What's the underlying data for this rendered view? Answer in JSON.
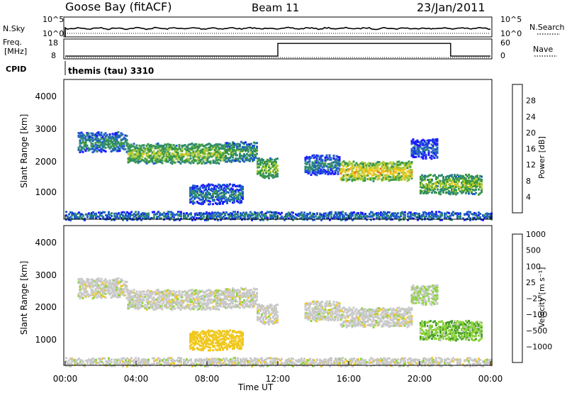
{
  "header": {
    "station": "Goose Bay (fitACF)",
    "beam": "Beam 11",
    "date": "23/Jan/2011"
  },
  "noise_panel": {
    "left_label": "N.Sky",
    "left_ticks": [
      "10^5",
      "10^0"
    ],
    "right_label": "N.Search",
    "right_ticks": [
      "10^5",
      "10^0"
    ]
  },
  "freq_panel": {
    "left_label_line1": "Freq.",
    "left_label_line2": "[MHz]",
    "left_ticks": [
      "18",
      "8"
    ],
    "right_label": "Nave",
    "right_ticks": [
      "60",
      "0"
    ],
    "freq_level": 0.78,
    "nave_low": 0.14,
    "nave_high": 0.78,
    "nave_step_times": [
      12.0,
      21.75
    ]
  },
  "cpid": {
    "label": "CPID",
    "text": "themis (tau) 3310"
  },
  "power_panel": {
    "ylabel": "Slant Range [km]",
    "yticks": [
      "1000",
      "2000",
      "3000",
      "4000"
    ],
    "colorbar_label": "Power [dB]",
    "colorbar_ticks": [
      "4",
      "8",
      "12",
      "16",
      "20",
      "24",
      "28"
    ],
    "colors": [
      "#1a1aff",
      "#1f5fc8",
      "#2f8a70",
      "#3c9a3c",
      "#a8c832",
      "#f0c81e",
      "#f07814",
      "#e82814"
    ]
  },
  "velocity_panel": {
    "ylabel": "Slant Range [km]",
    "yticks": [
      "1000",
      "2000",
      "3000",
      "4000"
    ],
    "colorbar_label": "Velocity [m s⁻¹]",
    "colorbar_ticks": [
      "1000",
      "500",
      "100",
      "25",
      "−25",
      "−100",
      "−500",
      "−1000"
    ],
    "colors": [
      "#2848d0",
      "#2a7a3c",
      "#4aa02a",
      "#8cd23c",
      "#c8c8c8",
      "#f0c81e",
      "#f08c14",
      "#e82814"
    ]
  },
  "xaxis": {
    "ticks": [
      "00:00",
      "04:00",
      "08:00",
      "12:00",
      "16:00",
      "20:00",
      "00:00"
    ],
    "label": "Time UT"
  },
  "chart_data": {
    "type": "heatmap",
    "x_unit": "hours UT",
    "xlim": [
      0,
      24
    ],
    "ylim": [
      200,
      4500
    ],
    "y_unit": "km",
    "echo_regions": [
      {
        "t_start": 0.7,
        "t_end": 3.5,
        "range": 2600,
        "power": 12,
        "velocity": 0
      },
      {
        "t_start": 3.5,
        "t_end": 9.0,
        "range": 2250,
        "power": 18,
        "velocity": 0
      },
      {
        "t_start": 9.0,
        "t_end": 10.8,
        "range": 2300,
        "power": 14,
        "velocity": 0
      },
      {
        "t_start": 7.0,
        "t_end": 10.0,
        "range": 1000,
        "power": 10,
        "velocity": -100
      },
      {
        "t_start": 10.8,
        "t_end": 12.0,
        "range": 1800,
        "power": 18,
        "velocity": 0
      },
      {
        "t_start": 13.5,
        "t_end": 15.5,
        "range": 1900,
        "power": 10,
        "velocity": 0
      },
      {
        "t_start": 15.5,
        "t_end": 19.5,
        "range": 1700,
        "power": 22,
        "velocity": 0
      },
      {
        "t_start": 19.5,
        "t_end": 21.0,
        "range": 2400,
        "power": 8,
        "velocity": 25
      },
      {
        "t_start": 20.0,
        "t_end": 23.5,
        "range": 1300,
        "power": 18,
        "velocity": 50
      },
      {
        "t_start": 0.0,
        "t_end": 24.0,
        "range": 330,
        "power": 8,
        "velocity": 0
      }
    ]
  }
}
